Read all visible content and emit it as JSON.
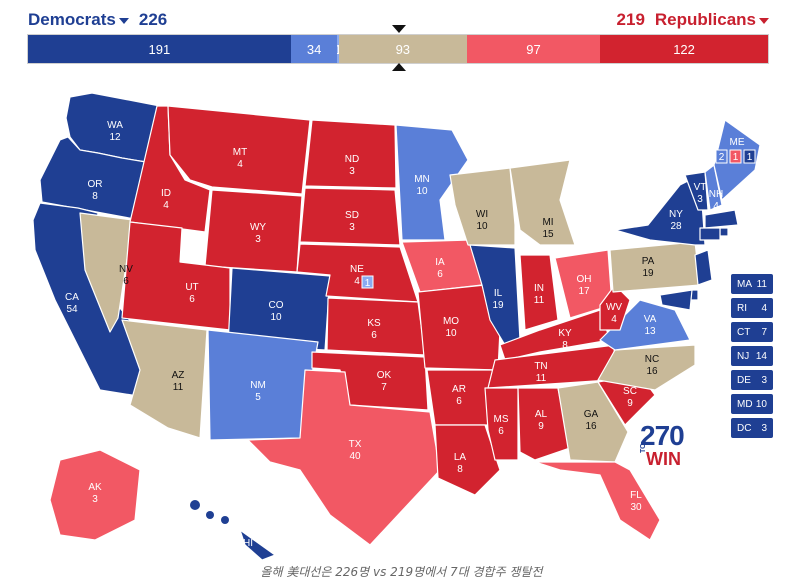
{
  "header": {
    "dem_label": "Democrats",
    "dem_total": "226",
    "rep_total": "219",
    "rep_label": "Republicans"
  },
  "colors": {
    "safe_dem": "#1f3f93",
    "likely_dem": "#5a7fd8",
    "leans_dem": "#8aaaf0",
    "tossup": "#c8b999",
    "leans_rep": "#f25864",
    "safe_rep": "#d2232f"
  },
  "bar": [
    {
      "value": 191,
      "label": "191",
      "color": "#1f3f93"
    },
    {
      "value": 34,
      "label": "34",
      "color": "#5a7fd8"
    },
    {
      "value": 1,
      "label": "1",
      "color": "#8aaaf0"
    },
    {
      "value": 93,
      "label": "93",
      "color": "#c8b999"
    },
    {
      "value": 97,
      "label": "97",
      "color": "#f25864"
    },
    {
      "value": 122,
      "label": "122",
      "color": "#d2232f"
    }
  ],
  "states": [
    {
      "abbr": "WA",
      "ev": "12",
      "rating": "safe_dem"
    },
    {
      "abbr": "OR",
      "ev": "8",
      "rating": "safe_dem"
    },
    {
      "abbr": "CA",
      "ev": "54",
      "rating": "safe_dem"
    },
    {
      "abbr": "NV",
      "ev": "6",
      "rating": "tossup"
    },
    {
      "abbr": "ID",
      "ev": "4",
      "rating": "safe_rep"
    },
    {
      "abbr": "MT",
      "ev": "4",
      "rating": "safe_rep"
    },
    {
      "abbr": "WY",
      "ev": "3",
      "rating": "safe_rep"
    },
    {
      "abbr": "UT",
      "ev": "6",
      "rating": "safe_rep"
    },
    {
      "abbr": "AZ",
      "ev": "11",
      "rating": "tossup"
    },
    {
      "abbr": "CO",
      "ev": "10",
      "rating": "safe_dem"
    },
    {
      "abbr": "NM",
      "ev": "5",
      "rating": "likely_dem"
    },
    {
      "abbr": "ND",
      "ev": "3",
      "rating": "safe_rep"
    },
    {
      "abbr": "SD",
      "ev": "3",
      "rating": "safe_rep"
    },
    {
      "abbr": "NE",
      "ev": "4",
      "rating": "safe_rep"
    },
    {
      "abbr": "KS",
      "ev": "6",
      "rating": "safe_rep"
    },
    {
      "abbr": "OK",
      "ev": "7",
      "rating": "safe_rep"
    },
    {
      "abbr": "TX",
      "ev": "40",
      "rating": "leans_rep"
    },
    {
      "abbr": "MN",
      "ev": "10",
      "rating": "likely_dem"
    },
    {
      "abbr": "IA",
      "ev": "6",
      "rating": "leans_rep"
    },
    {
      "abbr": "MO",
      "ev": "10",
      "rating": "safe_rep"
    },
    {
      "abbr": "AR",
      "ev": "6",
      "rating": "safe_rep"
    },
    {
      "abbr": "LA",
      "ev": "8",
      "rating": "safe_rep"
    },
    {
      "abbr": "WI",
      "ev": "10",
      "rating": "tossup"
    },
    {
      "abbr": "IL",
      "ev": "19",
      "rating": "safe_dem"
    },
    {
      "abbr": "MI",
      "ev": "15",
      "rating": "tossup"
    },
    {
      "abbr": "IN",
      "ev": "11",
      "rating": "safe_rep"
    },
    {
      "abbr": "OH",
      "ev": "17",
      "rating": "leans_rep"
    },
    {
      "abbr": "KY",
      "ev": "8",
      "rating": "safe_rep"
    },
    {
      "abbr": "TN",
      "ev": "11",
      "rating": "safe_rep"
    },
    {
      "abbr": "MS",
      "ev": "6",
      "rating": "safe_rep"
    },
    {
      "abbr": "AL",
      "ev": "9",
      "rating": "safe_rep"
    },
    {
      "abbr": "GA",
      "ev": "16",
      "rating": "tossup"
    },
    {
      "abbr": "FL",
      "ev": "30",
      "rating": "leans_rep"
    },
    {
      "abbr": "SC",
      "ev": "9",
      "rating": "safe_rep"
    },
    {
      "abbr": "NC",
      "ev": "16",
      "rating": "tossup"
    },
    {
      "abbr": "VA",
      "ev": "13",
      "rating": "likely_dem"
    },
    {
      "abbr": "WV",
      "ev": "4",
      "rating": "safe_rep"
    },
    {
      "abbr": "PA",
      "ev": "19",
      "rating": "tossup"
    },
    {
      "abbr": "NY",
      "ev": "28",
      "rating": "safe_dem"
    },
    {
      "abbr": "VT",
      "ev": "3",
      "rating": "safe_dem"
    },
    {
      "abbr": "NH",
      "ev": "4",
      "rating": "likely_dem"
    },
    {
      "abbr": "ME",
      "ev": "",
      "rating": "likely_dem"
    },
    {
      "abbr": "AK",
      "ev": "3",
      "rating": "leans_rep"
    },
    {
      "abbr": "HI",
      "ev": "4",
      "rating": "safe_dem"
    }
  ],
  "maine_districts": [
    "2",
    "1",
    "1"
  ],
  "nebraska_district": "1",
  "northeast": [
    {
      "abbr": "MA",
      "ev": "11"
    },
    {
      "abbr": "RI",
      "ev": "4"
    },
    {
      "abbr": "CT",
      "ev": "7"
    },
    {
      "abbr": "NJ",
      "ev": "14"
    },
    {
      "abbr": "DE",
      "ev": "3"
    },
    {
      "abbr": "MD",
      "ev": "10"
    },
    {
      "abbr": "DC",
      "ev": "3"
    }
  ],
  "logo": {
    "number": "270",
    "to": "TO",
    "win": "WIN"
  },
  "caption": "올해 美대선은 226명 vs 219명에서 7대 경합주 쟁탈전"
}
